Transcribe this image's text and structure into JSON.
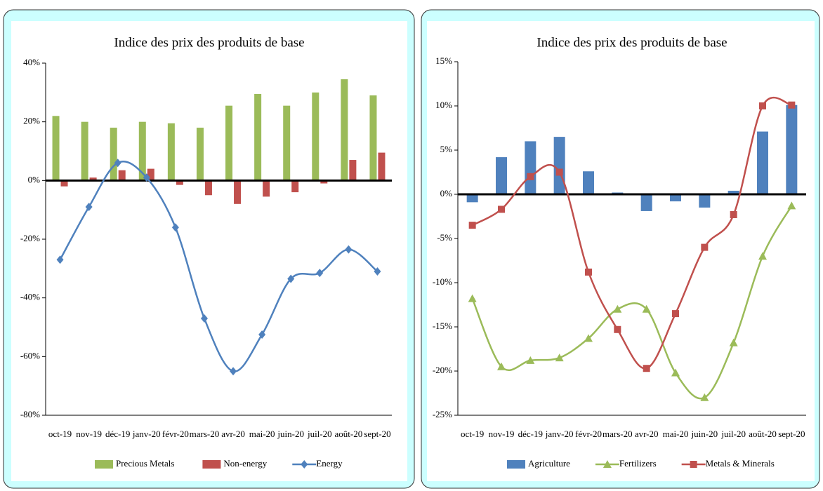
{
  "chart_data": [
    {
      "type": "combo",
      "title": "Indice des prix des produits de base",
      "categories": [
        "oct-19",
        "nov-19",
        "déc-19",
        "janv-20",
        "févr-20",
        "mars-20",
        "avr-20",
        "mai-20",
        "juin-20",
        "juil-20",
        "août-20",
        "sept-20"
      ],
      "series": [
        {
          "name": "Precious Metals",
          "type": "bar",
          "color": "#9bbb59",
          "values": [
            22,
            20,
            18,
            20,
            19.5,
            18,
            25.5,
            29.5,
            25.5,
            30,
            34.5,
            29
          ]
        },
        {
          "name": "Non-energy",
          "type": "bar",
          "color": "#c0504d",
          "values": [
            -2,
            1,
            3.5,
            4,
            -1.5,
            -5,
            -8,
            -5.5,
            -4,
            -1,
            7,
            9.5
          ]
        },
        {
          "name": "Energy",
          "type": "line",
          "marker": "diamond",
          "color": "#4f81bd",
          "values": [
            -27,
            -9,
            6,
            1,
            -16,
            -47,
            -65,
            -52.5,
            -33.5,
            -31.5,
            -23.5,
            -31
          ]
        }
      ],
      "ylim": [
        -80,
        40
      ],
      "yticks": [
        {
          "value": -80,
          "label": "-80%"
        },
        {
          "value": -60,
          "label": "-60%"
        },
        {
          "value": -40,
          "label": "-40%"
        },
        {
          "value": -20,
          "label": "-20%"
        },
        {
          "value": 0,
          "label": "0%"
        },
        {
          "value": 20,
          "label": "20%"
        },
        {
          "value": 40,
          "label": "40%"
        }
      ],
      "grid": false,
      "legend": "bottom"
    },
    {
      "type": "combo",
      "title": "Indice des prix des produits de base",
      "categories": [
        "oct-19",
        "nov-19",
        "déc-19",
        "janv-20",
        "févr-20",
        "mars-20",
        "avr-20",
        "mai-20",
        "juin-20",
        "juil-20",
        "août-20",
        "sept-20"
      ],
      "series": [
        {
          "name": "Agriculture",
          "type": "bar",
          "color": "#4f81bd",
          "values": [
            -0.9,
            4.2,
            6,
            6.5,
            2.6,
            0.2,
            -1.9,
            -0.8,
            -1.5,
            0.4,
            7.1,
            10.1
          ]
        },
        {
          "name": "Fertilizers",
          "type": "line",
          "marker": "triangle",
          "color": "#9bbb59",
          "values": [
            -11.8,
            -19.5,
            -18.8,
            -18.5,
            -16.3,
            -13,
            -13,
            -20.2,
            -23,
            -16.8,
            -7,
            -1.3
          ]
        },
        {
          "name": "Metals & Minerals",
          "type": "line",
          "marker": "square",
          "color": "#c0504d",
          "values": [
            -3.5,
            -1.7,
            2,
            2.5,
            -8.8,
            -15.3,
            -19.7,
            -13.5,
            -6,
            -2.3,
            10,
            10.1
          ]
        }
      ],
      "ylim": [
        -25,
        15
      ],
      "yticks": [
        {
          "value": -25,
          "label": "-25%"
        },
        {
          "value": -20,
          "label": "-20%"
        },
        {
          "value": -15,
          "label": "-15%"
        },
        {
          "value": -10,
          "label": "-10%"
        },
        {
          "value": -5,
          "label": "-5%"
        },
        {
          "value": 0,
          "label": "0%"
        },
        {
          "value": 5,
          "label": "5%"
        },
        {
          "value": 10,
          "label": "10%"
        },
        {
          "value": 15,
          "label": "15%"
        }
      ],
      "grid": false,
      "legend": "bottom"
    }
  ]
}
